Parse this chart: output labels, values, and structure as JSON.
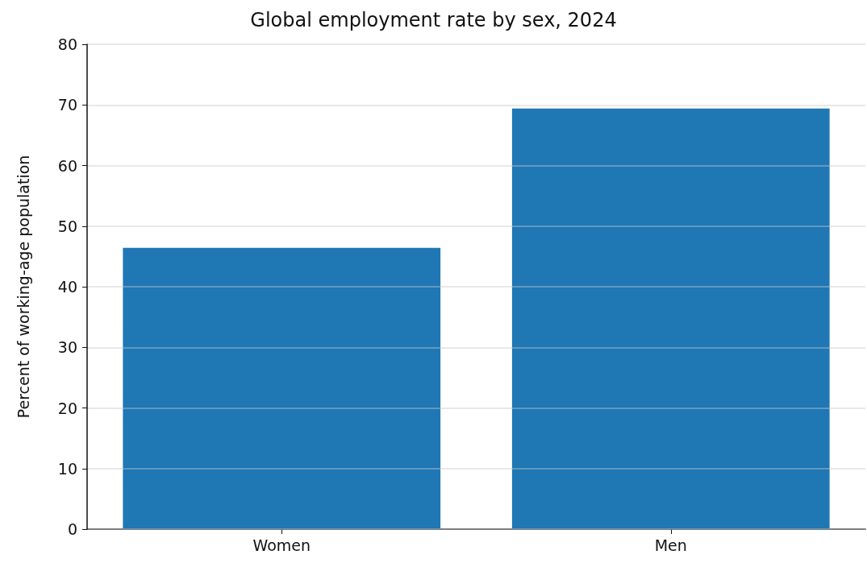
{
  "chart_data": {
    "type": "bar",
    "title": "Global employment rate by sex, 2024",
    "ylabel": "Percent of working-age population",
    "categories": [
      "Women",
      "Men"
    ],
    "series": [
      {
        "color": "#1f77b4",
        "values": [
          46.4,
          69.4
        ]
      }
    ],
    "ylim": [
      0,
      80
    ],
    "yticks": [
      0,
      10,
      20,
      30,
      40,
      50,
      60,
      70,
      80
    ],
    "grid": "y"
  }
}
